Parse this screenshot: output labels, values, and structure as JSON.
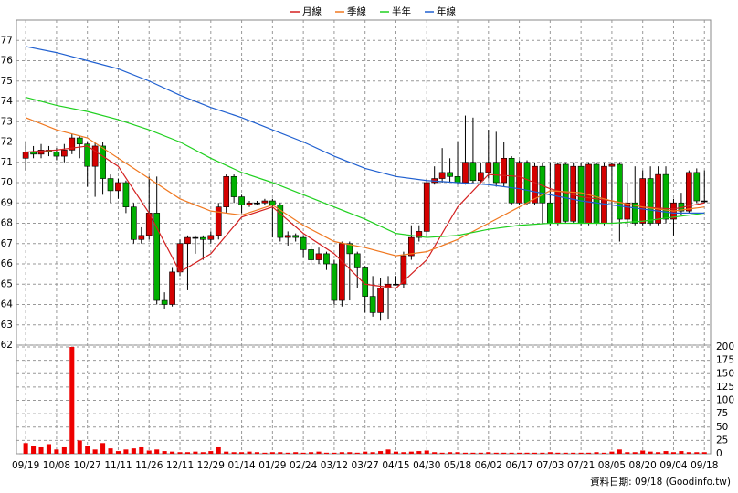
{
  "chart_data": [
    {
      "type": "candlestick",
      "xlim": [
        -1.2,
        88.8
      ],
      "xticks": [
        {
          "value": 0,
          "label": "09/19"
        },
        {
          "value": 4,
          "label": "10/08"
        },
        {
          "value": 8,
          "label": "10/27"
        },
        {
          "value": 12,
          "label": "11/11"
        },
        {
          "value": 16,
          "label": "11/26"
        },
        {
          "value": 20,
          "label": "12/11"
        },
        {
          "value": 24,
          "label": "12/29"
        },
        {
          "value": 28,
          "label": "01/14"
        },
        {
          "value": 32,
          "label": "01/29"
        },
        {
          "value": 36,
          "label": "02/24"
        },
        {
          "value": 40,
          "label": "03/12"
        },
        {
          "value": 44,
          "label": "03/27"
        },
        {
          "value": 48,
          "label": "04/15"
        },
        {
          "value": 52,
          "label": "04/30"
        },
        {
          "value": 56,
          "label": "05/18"
        },
        {
          "value": 60,
          "label": "06/02"
        },
        {
          "value": 64,
          "label": "06/17"
        },
        {
          "value": 68,
          "label": "07/03"
        },
        {
          "value": 72,
          "label": "07/21"
        },
        {
          "value": 76,
          "label": "08/05"
        },
        {
          "value": 80,
          "label": "08/20"
        },
        {
          "value": 84,
          "label": "09/04"
        },
        {
          "value": 88,
          "label": "09/18"
        }
      ],
      "ylim": [
        62,
        78
      ],
      "yticks": [
        62,
        63,
        64,
        65,
        66,
        67,
        68,
        69,
        70,
        71,
        72,
        73,
        74,
        75,
        76,
        77
      ],
      "grid": true,
      "legend": "top",
      "up_color": "#d40000",
      "down_color": "#00b000",
      "open": [
        71.2,
        71.5,
        71.4,
        71.6,
        71.5,
        71.3,
        71.6,
        72.2,
        71.9,
        70.8,
        71.8,
        70.2,
        69.6,
        70.0,
        68.8,
        67.2,
        67.4,
        68.5,
        64.2,
        64.0,
        65.6,
        67.0,
        67.3,
        67.3,
        67.2,
        67.4,
        68.8,
        70.3,
        69.3,
        68.9,
        69.0,
        69.0,
        69.1,
        68.9,
        67.3,
        67.4,
        67.3,
        66.7,
        66.2,
        66.5,
        66.0,
        64.2,
        67.0,
        66.5,
        65.8,
        64.4,
        63.6,
        64.8,
        65.0,
        65.0,
        66.4,
        67.3,
        67.6,
        70.0,
        70.2,
        70.5,
        70.3,
        70.0,
        71.0,
        70.1,
        70.5,
        71.0,
        70.0,
        71.2,
        69.0,
        71.0,
        69.0,
        70.8,
        69.0,
        68.0,
        70.9,
        68.1,
        70.8,
        68.0,
        70.9,
        68.0,
        70.8,
        70.9,
        68.2,
        69.0,
        68.0,
        70.2,
        68.0,
        70.4,
        68.2,
        69.0,
        68.6,
        70.5,
        69.1
      ],
      "high": [
        72.0,
        71.8,
        71.9,
        71.8,
        71.7,
        71.9,
        72.4,
        72.3,
        72.0,
        72.0,
        72.0,
        70.4,
        70.2,
        70.1,
        69.0,
        67.8,
        70.3,
        70.3,
        64.6,
        65.8,
        67.2,
        67.4,
        67.4,
        67.4,
        67.6,
        69.0,
        70.4,
        70.4,
        69.4,
        69.1,
        69.1,
        69.2,
        69.2,
        69.0,
        67.6,
        67.5,
        67.4,
        66.9,
        66.8,
        66.6,
        66.2,
        67.1,
        67.1,
        66.6,
        65.9,
        65.4,
        65.3,
        65.4,
        65.4,
        66.6,
        67.9,
        67.9,
        70.2,
        70.8,
        71.7,
        71.2,
        72.0,
        73.3,
        73.2,
        71.0,
        72.6,
        72.5,
        72.0,
        71.3,
        71.1,
        71.1,
        71.0,
        71.0,
        71.0,
        71.0,
        71.0,
        71.0,
        71.0,
        71.0,
        71.0,
        71.0,
        71.0,
        71.0,
        70.0,
        70.8,
        70.6,
        70.8,
        70.8,
        70.8,
        69.2,
        69.5,
        70.6,
        70.7,
        70.6
      ],
      "low": [
        70.6,
        71.2,
        71.2,
        71.3,
        71.1,
        71.0,
        71.4,
        71.2,
        69.8,
        69.3,
        69.4,
        69.0,
        69.2,
        68.5,
        67.0,
        67.0,
        67.2,
        64.0,
        63.8,
        63.9,
        65.4,
        64.7,
        66.5,
        66.2,
        67.0,
        67.2,
        68.5,
        69.0,
        68.5,
        68.8,
        68.9,
        68.9,
        67.3,
        67.1,
        66.9,
        67.1,
        66.3,
        66.0,
        66.0,
        65.7,
        64.0,
        63.9,
        64.2,
        64.8,
        63.6,
        63.4,
        63.2,
        63.3,
        65.0,
        64.8,
        66.2,
        67.1,
        67.3,
        69.9,
        70.0,
        70.0,
        69.9,
        69.9,
        70.0,
        70.0,
        70.2,
        69.8,
        69.8,
        68.9,
        68.9,
        68.9,
        68.9,
        68.0,
        67.9,
        67.9,
        68.0,
        68.0,
        67.9,
        67.9,
        67.9,
        67.9,
        68.0,
        67.1,
        67.8,
        67.9,
        67.9,
        67.9,
        67.9,
        68.0,
        67.4,
        68.4,
        68.5,
        69.0,
        69.0
      ],
      "close": [
        71.5,
        71.4,
        71.6,
        71.5,
        71.3,
        71.6,
        72.2,
        71.9,
        70.8,
        71.8,
        70.2,
        69.6,
        70.0,
        68.8,
        67.2,
        67.4,
        68.5,
        64.2,
        64.0,
        65.6,
        67.0,
        67.3,
        67.3,
        67.2,
        67.4,
        68.8,
        70.3,
        69.3,
        68.9,
        69.0,
        69.0,
        69.1,
        68.9,
        67.3,
        67.4,
        67.3,
        66.7,
        66.2,
        66.5,
        66.0,
        64.2,
        67.0,
        66.5,
        65.8,
        64.4,
        63.6,
        64.8,
        65.0,
        65.0,
        66.4,
        67.3,
        67.6,
        70.0,
        70.2,
        70.5,
        70.3,
        70.0,
        71.0,
        70.1,
        70.5,
        71.0,
        70.0,
        71.2,
        69.0,
        71.0,
        69.0,
        70.8,
        69.0,
        68.0,
        70.9,
        68.1,
        70.8,
        68.0,
        70.9,
        68.0,
        70.8,
        70.9,
        68.2,
        69.0,
        68.0,
        70.2,
        68.0,
        70.4,
        68.2,
        69.0,
        68.6,
        70.5,
        69.1,
        69.1
      ],
      "series": [
        {
          "name": "月線",
          "color": "#d42020",
          "x": [
            0,
            4,
            8,
            12,
            16,
            20,
            24,
            28,
            32,
            36,
            40,
            44,
            48,
            52,
            56,
            60,
            64,
            68,
            72,
            76,
            80,
            84,
            88
          ],
          "values": [
            71.5,
            71.6,
            71.8,
            70.8,
            68.5,
            65.6,
            66.5,
            68.3,
            68.8,
            67.5,
            66.5,
            65.0,
            64.8,
            66.2,
            68.8,
            70.4,
            70.3,
            69.7,
            69.3,
            69.1,
            68.8,
            68.7,
            69.0
          ]
        },
        {
          "name": "季線",
          "color": "#f07820",
          "x": [
            0,
            4,
            8,
            12,
            16,
            20,
            24,
            28,
            32,
            36,
            40,
            44,
            48,
            52,
            56,
            60,
            64,
            68,
            72,
            76,
            80,
            84,
            88
          ],
          "values": [
            73.2,
            72.6,
            72.2,
            71.2,
            70.2,
            69.2,
            68.6,
            68.4,
            68.9,
            67.9,
            67.1,
            66.8,
            66.4,
            66.6,
            67.2,
            68.0,
            68.8,
            69.6,
            69.5,
            69.1,
            68.8,
            68.6,
            68.8
          ]
        },
        {
          "name": "半年",
          "color": "#20d020",
          "x": [
            0,
            4,
            8,
            12,
            16,
            20,
            24,
            28,
            32,
            36,
            40,
            44,
            48,
            52,
            56,
            60,
            64,
            68,
            72,
            76,
            80,
            84,
            88
          ],
          "values": [
            74.2,
            73.8,
            73.5,
            73.1,
            72.6,
            72.0,
            71.2,
            70.5,
            70.0,
            69.4,
            68.8,
            68.2,
            67.5,
            67.3,
            67.4,
            67.7,
            67.9,
            68.0,
            68.0,
            68.0,
            68.1,
            68.3,
            68.5
          ]
        },
        {
          "name": "年線",
          "color": "#2060d0",
          "x": [
            0,
            4,
            8,
            12,
            16,
            20,
            24,
            28,
            32,
            36,
            40,
            44,
            48,
            52,
            56,
            60,
            64,
            68,
            72,
            76,
            80,
            84,
            88
          ],
          "values": [
            76.7,
            76.4,
            76.0,
            75.6,
            75.0,
            74.3,
            73.7,
            73.2,
            72.6,
            72.0,
            71.3,
            70.7,
            70.3,
            70.1,
            70.0,
            69.9,
            69.7,
            69.4,
            69.1,
            68.9,
            68.7,
            68.5,
            68.5
          ]
        }
      ],
      "annotation": "資料日期: 09/18 (Goodinfo.tw)"
    },
    {
      "type": "bar",
      "xlim": [
        -1.2,
        88.8
      ],
      "ylim": [
        0,
        200
      ],
      "yticks": [
        0,
        25,
        50,
        75,
        100,
        125,
        150,
        175,
        200
      ],
      "color": "#ee0000",
      "values": [
        20,
        15,
        12,
        18,
        8,
        12,
        200,
        25,
        15,
        8,
        20,
        10,
        5,
        8,
        10,
        12,
        6,
        8,
        5,
        4,
        3,
        3,
        4,
        3,
        5,
        12,
        4,
        3,
        3,
        4,
        3,
        2,
        3,
        3,
        2,
        3,
        2,
        3,
        4,
        2,
        2,
        3,
        3,
        2,
        4,
        3,
        5,
        8,
        4,
        3,
        4,
        5,
        6,
        3,
        2,
        3,
        3,
        2,
        2,
        2,
        3,
        2,
        2,
        2,
        2,
        2,
        2,
        2,
        3,
        2,
        2,
        2,
        2,
        2,
        3,
        2,
        4,
        8,
        3,
        3,
        6,
        4,
        3,
        5,
        3,
        5,
        3,
        3,
        3
      ]
    }
  ]
}
